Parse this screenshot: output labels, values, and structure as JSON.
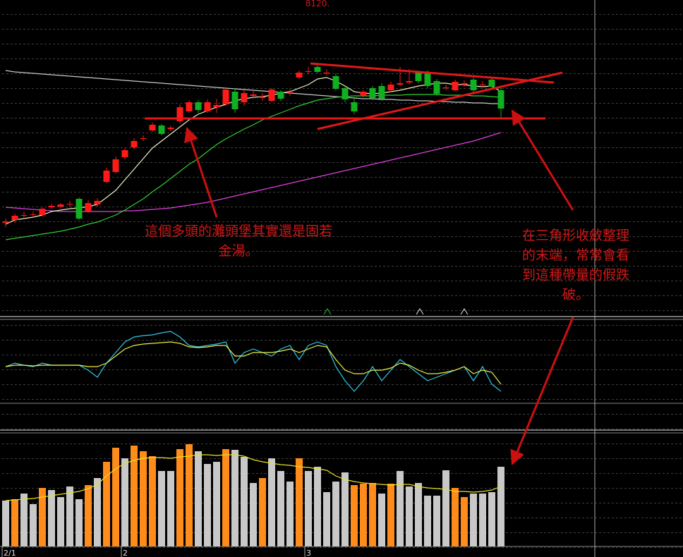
{
  "chart_data": {
    "type": "candlestick",
    "top_label": "8120.",
    "ylim": [
      0,
      445
    ],
    "categories": [
      "2/1",
      null,
      null,
      null,
      null,
      null,
      null,
      null,
      null,
      null,
      null,
      null,
      null,
      "2",
      null,
      null,
      null,
      null,
      null,
      null,
      null,
      null,
      null,
      null,
      null,
      null,
      null,
      null,
      null,
      null,
      null,
      null,
      null,
      "3",
      null,
      null,
      null,
      null,
      null,
      null,
      null,
      null,
      null,
      null,
      null,
      null,
      null,
      null,
      null,
      null,
      null,
      null,
      null,
      null,
      null
    ],
    "up_color": "#ff1a1a",
    "down_color": "#10b020",
    "flat_color": "#e0e0e0",
    "open": [
      129,
      133,
      139,
      140,
      140,
      151,
      152,
      155,
      163,
      145,
      155,
      187,
      201,
      222,
      236,
      248,
      260,
      267,
      262,
      273,
      287,
      300,
      287,
      293,
      297,
      315,
      300,
      309,
      306,
      302,
      315,
      313,
      335,
      343,
      350,
      341,
      337,
      320,
      300,
      309,
      320,
      323,
      317,
      325,
      328,
      342,
      341,
      330,
      320,
      317,
      325,
      332,
      324,
      332,
      317
    ],
    "high": [
      135,
      142,
      145,
      145,
      151,
      156,
      157,
      160,
      165,
      161,
      164,
      207,
      223,
      235,
      249,
      253,
      271,
      269,
      267,
      297,
      303,
      303,
      304,
      305,
      321,
      320,
      317,
      317,
      313,
      320,
      317,
      319,
      345,
      350,
      353,
      347,
      341,
      323,
      305,
      317,
      323,
      327,
      329,
      350,
      347,
      345,
      345,
      333,
      325,
      332,
      331,
      335,
      330,
      335,
      320
    ],
    "low": [
      123,
      129,
      135,
      137,
      138,
      149,
      149,
      152,
      133,
      143,
      152,
      185,
      199,
      219,
      233,
      245,
      258,
      253,
      259,
      270,
      285,
      285,
      285,
      285,
      295,
      285,
      295,
      305,
      302,
      300,
      302,
      309,
      333,
      340,
      341,
      338,
      317,
      300,
      283,
      307,
      303,
      302,
      314,
      323,
      325,
      327,
      320,
      309,
      317,
      315,
      322,
      314,
      321,
      320,
      279
    ],
    "close": [
      131,
      139,
      140,
      141,
      149,
      153,
      155,
      156,
      135,
      157,
      160,
      203,
      219,
      232,
      245,
      249,
      268,
      255,
      264,
      293,
      300,
      289,
      300,
      296,
      318,
      290,
      313,
      311,
      308,
      318,
      305,
      314,
      342,
      344,
      343,
      342,
      319,
      304,
      287,
      315,
      306,
      305,
      325,
      327,
      330,
      330,
      323,
      312,
      321,
      329,
      327,
      317,
      325,
      322,
      291
    ],
    "overlays": [
      {
        "color": "#c8c8c8",
        "values": [
          345,
          343,
          342,
          341,
          340,
          339,
          338,
          337,
          336,
          335,
          334,
          333,
          332,
          331,
          330,
          329,
          328,
          327,
          326,
          325,
          324,
          323,
          322,
          321,
          320,
          319,
          318,
          317,
          316,
          315,
          314,
          313,
          312,
          311,
          310,
          309,
          308,
          307,
          306,
          305,
          305,
          304,
          304,
          303,
          303,
          302,
          302,
          301,
          301,
          300,
          300,
          299,
          299,
          298,
          298
        ]
      },
      {
        "color": "#e040e0",
        "values": [
          151,
          150,
          149,
          148,
          147,
          146,
          145,
          145,
          145,
          145,
          145,
          145,
          145,
          146,
          146,
          147,
          148,
          149,
          150,
          152,
          154,
          156,
          158,
          161,
          164,
          167,
          170,
          173,
          176,
          179,
          182,
          185,
          188,
          191,
          194,
          197,
          200,
          203,
          206,
          209,
          212,
          215,
          218,
          221,
          224,
          227,
          230,
          233,
          236,
          239,
          242,
          245,
          249,
          253,
          257
        ]
      },
      {
        "color": "#30d030",
        "values": [
          105,
          107,
          109,
          111,
          113,
          115,
          117,
          120,
          123,
          127,
          130,
          135,
          140,
          147,
          155,
          163,
          173,
          182,
          192,
          202,
          212,
          220,
          230,
          240,
          248,
          255,
          262,
          268,
          275,
          280,
          285,
          290,
          295,
          299,
          303,
          305,
          307,
          308,
          309,
          309,
          309,
          310,
          310,
          310,
          311,
          311,
          311,
          311,
          310,
          310,
          310,
          309,
          309,
          308,
          307
        ]
      },
      {
        "color": "#f0f0c0",
        "values": [
          127,
          133,
          135,
          137,
          140,
          145,
          147,
          149,
          150,
          152,
          155,
          165,
          175,
          190,
          205,
          220,
          235,
          245,
          255,
          265,
          275,
          283,
          288,
          293,
          297,
          302,
          305,
          307,
          308,
          310,
          313,
          315,
          320,
          325,
          333,
          335,
          330,
          323,
          315,
          313,
          312,
          313,
          315,
          317,
          320,
          323,
          325,
          327,
          327,
          325,
          325,
          323,
          322,
          323,
          315
        ]
      }
    ],
    "indicator": {
      "ylim": [
        0,
        115
      ],
      "series": [
        {
          "color": "#30c8e8",
          "values": [
            50,
            55,
            52,
            50,
            55,
            52,
            52,
            52,
            52,
            45,
            35,
            55,
            70,
            85,
            92,
            94,
            95,
            98,
            100,
            92,
            80,
            78,
            80,
            82,
            85,
            55,
            70,
            75,
            70,
            65,
            75,
            80,
            60,
            80,
            85,
            80,
            50,
            30,
            15,
            30,
            50,
            30,
            45,
            60,
            50,
            40,
            30,
            35,
            40,
            45,
            50,
            30,
            50,
            25,
            15
          ]
        },
        {
          "color": "#f0f040",
          "values": [
            50,
            52,
            52,
            51,
            52,
            52,
            52,
            52,
            52,
            50,
            50,
            55,
            65,
            75,
            80,
            82,
            83,
            84,
            85,
            83,
            78,
            77,
            78,
            80,
            80,
            65,
            65,
            70,
            70,
            70,
            72,
            75,
            70,
            75,
            80,
            78,
            60,
            45,
            40,
            40,
            45,
            45,
            48,
            55,
            52,
            45,
            40,
            40,
            42,
            45,
            50,
            40,
            45,
            42,
            25
          ]
        }
      ]
    },
    "volume": {
      "ylim": [
        0,
        165
      ],
      "values": [
        65,
        67,
        75,
        60,
        83,
        80,
        70,
        85,
        67,
        87,
        97,
        120,
        140,
        125,
        143,
        135,
        128,
        107,
        107,
        138,
        145,
        135,
        117,
        120,
        138,
        137,
        127,
        90,
        97,
        125,
        107,
        92,
        125,
        107,
        113,
        77,
        92,
        105,
        87,
        89,
        90,
        75,
        89,
        107,
        85,
        90,
        72,
        72,
        108,
        83,
        70,
        75,
        75,
        77,
        113
      ],
      "colors": [
        "#c8c8c8",
        "#ff8c1a",
        "#c8c8c8",
        "#c8c8c8",
        "#ff8c1a",
        "#c8c8c8",
        "#c8c8c8",
        "#c8c8c8",
        "#c8c8c8",
        "#ff8c1a",
        "#c8c8c8",
        "#ff8c1a",
        "#ff8c1a",
        "#c8c8c8",
        "#ff8c1a",
        "#ff8c1a",
        "#ff8c1a",
        "#c8c8c8",
        "#c8c8c8",
        "#ff8c1a",
        "#ff8c1a",
        "#c8c8c8",
        "#c8c8c8",
        "#c8c8c8",
        "#ff8c1a",
        "#c8c8c8",
        "#c8c8c8",
        "#c8c8c8",
        "#ff8c1a",
        "#c8c8c8",
        "#c8c8c8",
        "#c8c8c8",
        "#ff8c1a",
        "#c8c8c8",
        "#c8c8c8",
        "#c8c8c8",
        "#c8c8c8",
        "#c8c8c8",
        "#ff8c1a",
        "#ff8c1a",
        "#ff8c1a",
        "#c8c8c8",
        "#ff8c1a",
        "#c8c8c8",
        "#c8c8c8",
        "#c8c8c8",
        "#c8c8c8",
        "#c8c8c8",
        "#c8c8c8",
        "#ff8c1a",
        "#ff8c1a",
        "#c8c8c8",
        "#c8c8c8",
        "#c8c8c8",
        "#c8c8c8"
      ],
      "line": {
        "color": "#e8e020",
        "values": [
          65,
          66,
          67,
          68,
          70,
          72,
          74,
          76,
          78,
          82,
          88,
          100,
          110,
          118,
          122,
          125,
          126,
          126,
          125,
          127,
          128,
          130,
          130,
          129,
          130,
          130,
          128,
          123,
          120,
          118,
          116,
          115,
          113,
          112,
          110,
          108,
          100,
          95,
          92,
          90,
          89,
          88,
          87,
          88,
          88,
          85,
          83,
          82,
          81,
          78,
          78,
          77,
          78,
          80,
          85
        ]
      }
    },
    "annotations": [
      {
        "lines": [
          "這個多頭的灘頭堡其實還是固若",
          "金湯。"
        ]
      },
      {
        "lines": [
          "在三角形收斂整理",
          "的末端，常常會看",
          "到這種帶量的假跌",
          "破。"
        ]
      }
    ]
  }
}
